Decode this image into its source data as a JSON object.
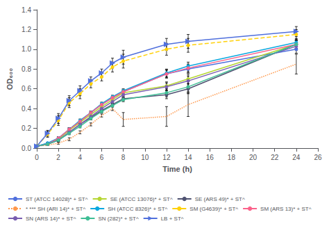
{
  "chart_data": {
    "type": "line",
    "xlabel": "Time (h)",
    "ylabel": "OD₆₀₀",
    "x": [
      0,
      1,
      2,
      3,
      4,
      5,
      6,
      7,
      8,
      12,
      14,
      24
    ],
    "xlim": [
      0,
      26
    ],
    "xticks": [
      0,
      2,
      4,
      6,
      8,
      10,
      12,
      14,
      16,
      18,
      20,
      22,
      24,
      26
    ],
    "ylim": [
      0,
      1.4
    ],
    "yticks": [
      {
        "value": 0,
        "label": "0.0"
      },
      0.2,
      0.4,
      0.6,
      0.8,
      {
        "value": 1,
        "label": "1.0"
      },
      1.2,
      1.4
    ],
    "grid": false,
    "legend": "bottom",
    "series": [
      {
        "name": "ST (ATCC 14028)* + ST^",
        "line_style": "solid",
        "marker": "circle",
        "values": [
          0.02,
          0.05,
          0.1,
          0.19,
          0.27,
          0.36,
          0.44,
          0.51,
          0.57,
          0.75,
          0.8,
          1.0
        ],
        "errors": [
          0.005,
          0.008,
          0.015,
          0.015,
          0.015,
          0.015,
          0.015,
          0.015,
          0.02,
          0.04,
          0.04,
          0.04
        ]
      },
      {
        "name": "SE (ATCC 13076)* + ST^",
        "line_style": "solid",
        "marker": "circle",
        "values": [
          0.02,
          0.04,
          0.09,
          0.18,
          0.26,
          0.34,
          0.42,
          0.49,
          0.56,
          0.63,
          0.7,
          1.05
        ],
        "errors": [
          0.005,
          0.008,
          0.015,
          0.015,
          0.015,
          0.015,
          0.015,
          0.015,
          0.02,
          0.04,
          0.05,
          0.04
        ]
      },
      {
        "name": "SE (ARS 49)* + ST^",
        "line_style": "solid",
        "marker": "circle",
        "values": [
          0.02,
          0.04,
          0.08,
          0.16,
          0.24,
          0.31,
          0.38,
          0.44,
          0.5,
          0.54,
          0.6,
          1.05
        ],
        "errors": [
          0.005,
          0.008,
          0.015,
          0.015,
          0.015,
          0.015,
          0.015,
          0.015,
          0.02,
          0.04,
          0.05,
          0.04
        ]
      },
      {
        "name": "* *** SH (ARI 14)* + ST^",
        "line_style": "dotted",
        "marker": "none",
        "values": [
          0.02,
          0.03,
          0.05,
          0.09,
          0.16,
          0.24,
          0.33,
          0.4,
          0.29,
          0.32,
          0.44,
          0.85
        ],
        "errors": [
          0.005,
          0.005,
          0.01,
          0.015,
          0.015,
          0.015,
          0.015,
          0.02,
          0.07,
          0.1,
          0.12,
          0.1
        ]
      },
      {
        "name": "SH (ATCC 8326)* + ST^",
        "line_style": "solid",
        "marker": "circle",
        "values": [
          0.02,
          0.05,
          0.1,
          0.19,
          0.28,
          0.36,
          0.45,
          0.52,
          0.58,
          0.76,
          0.83,
          1.07
        ],
        "errors": [
          0.005,
          0.008,
          0.015,
          0.015,
          0.015,
          0.015,
          0.015,
          0.015,
          0.02,
          0.04,
          0.04,
          0.04
        ]
      },
      {
        "name": "SM (G4639)* + ST^",
        "line_style": "dashed",
        "marker": "circle",
        "values": [
          0.02,
          0.14,
          0.28,
          0.46,
          0.55,
          0.65,
          0.72,
          0.82,
          0.88,
          1.0,
          1.04,
          1.15
        ],
        "errors": [
          0.005,
          0.03,
          0.05,
          0.05,
          0.05,
          0.04,
          0.04,
          0.05,
          0.07,
          0.06,
          0.07,
          0.05
        ]
      },
      {
        "name": "SM (ARS 13)* + ST^",
        "line_style": "solid",
        "marker": "circle",
        "values": [
          0.02,
          0.04,
          0.1,
          0.19,
          0.27,
          0.36,
          0.44,
          0.51,
          0.57,
          0.75,
          0.81,
          1.05
        ],
        "errors": [
          0.005,
          0.008,
          0.015,
          0.015,
          0.015,
          0.015,
          0.015,
          0.015,
          0.02,
          0.04,
          0.04,
          0.04
        ]
      },
      {
        "name": "SN (ARS 14)* + ST^",
        "line_style": "solid",
        "marker": "circle",
        "values": [
          0.02,
          0.04,
          0.08,
          0.16,
          0.24,
          0.32,
          0.4,
          0.47,
          0.54,
          0.62,
          0.68,
          1.03
        ],
        "errors": [
          0.005,
          0.008,
          0.015,
          0.015,
          0.015,
          0.015,
          0.015,
          0.015,
          0.02,
          0.04,
          0.05,
          0.04
        ]
      },
      {
        "name": "SN (282)* + ST^",
        "line_style": "solid",
        "marker": "circle",
        "values": [
          0.02,
          0.04,
          0.08,
          0.15,
          0.22,
          0.3,
          0.37,
          0.43,
          0.49,
          0.56,
          0.62,
          1.05
        ],
        "errors": [
          0.005,
          0.008,
          0.015,
          0.015,
          0.015,
          0.015,
          0.015,
          0.015,
          0.02,
          0.04,
          0.05,
          0.04
        ]
      },
      {
        "name": "LB + ST^",
        "line_style": "solid",
        "marker": "triangle-right",
        "values": [
          0.02,
          0.15,
          0.3,
          0.48,
          0.58,
          0.68,
          0.76,
          0.86,
          0.92,
          1.05,
          1.08,
          1.18
        ],
        "errors": [
          0.005,
          0.03,
          0.05,
          0.05,
          0.05,
          0.04,
          0.04,
          0.05,
          0.07,
          0.06,
          0.07,
          0.05
        ]
      }
    ]
  }
}
